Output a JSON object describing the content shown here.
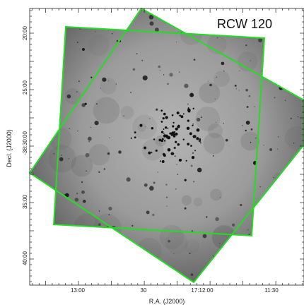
{
  "title": "RCW 120",
  "xlabel": "R.A. (J2000)",
  "ylabel": "Decl. (J2000)",
  "x_ticks": [
    "13:00",
    "30",
    "17:12:00",
    "11:30"
  ],
  "y_ticks": [
    "20:00",
    "25:00",
    "-38:30:00",
    "35:00",
    "40:00"
  ],
  "colors": {
    "footprint": "#22dd22",
    "background": "#ffffff",
    "sky_low": "#9a9a9a",
    "sky_high": "#333333"
  }
}
